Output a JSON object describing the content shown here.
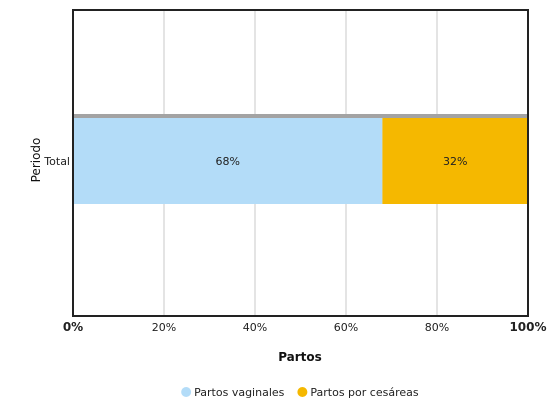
{
  "chart_data": {
    "type": "bar",
    "orientation": "horizontal",
    "stacked": true,
    "categories": [
      "Total"
    ],
    "series": [
      {
        "name": "Partos vaginales",
        "values": [
          68
        ],
        "color": "#b3dcf8",
        "label": "68%"
      },
      {
        "name": "Partos por cesáreas",
        "values": [
          32
        ],
        "color": "#f5b800",
        "label": "32%"
      }
    ],
    "xlabel": "Partos",
    "ylabel": "Periodo",
    "xlim": [
      0,
      100
    ],
    "x_ticks": [
      {
        "value": 0,
        "label": "0%",
        "bold": true
      },
      {
        "value": 20,
        "label": "20%",
        "bold": false
      },
      {
        "value": 40,
        "label": "40%",
        "bold": false
      },
      {
        "value": 60,
        "label": "60%",
        "bold": false
      },
      {
        "value": 80,
        "label": "80%",
        "bold": false
      },
      {
        "value": 100,
        "label": "100%",
        "bold": true
      }
    ],
    "grid": true,
    "legend_position": "bottom-center"
  }
}
